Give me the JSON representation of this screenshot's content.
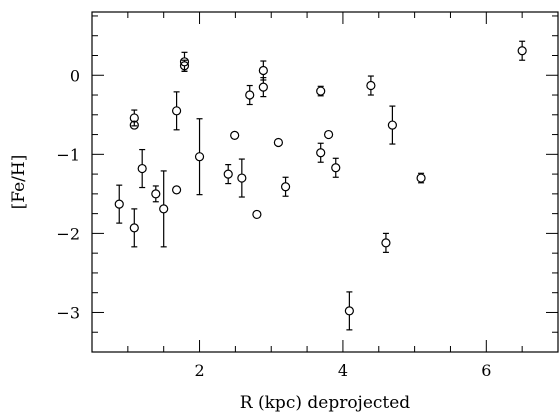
{
  "chart_data": {
    "type": "scatter",
    "title": "",
    "xlabel": "R (kpc) deprojected",
    "ylabel": "[Fe/H]",
    "xlim": [
      0.5,
      7.0
    ],
    "ylim": [
      -3.5,
      0.8
    ],
    "xticks": [
      {
        "value": 2,
        "label": "2"
      },
      {
        "value": 4,
        "label": "4"
      },
      {
        "value": 6,
        "label": "6"
      }
    ],
    "yticks": [
      {
        "value": 0,
        "label": "0"
      },
      {
        "value": -1,
        "label": "−1"
      },
      {
        "value": -2,
        "label": "−2"
      },
      {
        "value": -3,
        "label": "−3"
      }
    ],
    "x_minor_step": 0.5,
    "y_minor_step": 0.25,
    "grid": false,
    "marker": "open-circle",
    "error_bars": "vertical",
    "points": [
      {
        "x": 0.88,
        "y": -1.63,
        "err": 0.24
      },
      {
        "x": 1.09,
        "y": -0.54,
        "err": 0.1
      },
      {
        "x": 1.09,
        "y": -0.63,
        "err": 0.04
      },
      {
        "x": 1.09,
        "y": -1.93,
        "err": 0.24
      },
      {
        "x": 1.2,
        "y": -1.18,
        "err": 0.24
      },
      {
        "x": 1.39,
        "y": -1.5,
        "err": 0.1
      },
      {
        "x": 1.5,
        "y": -1.69,
        "err": 0.48
      },
      {
        "x": 1.68,
        "y": -0.45,
        "err": 0.24
      },
      {
        "x": 1.68,
        "y": -1.45,
        "err": 0.03
      },
      {
        "x": 1.79,
        "y": 0.17,
        "err": 0.12
      },
      {
        "x": 1.79,
        "y": 0.12,
        "err": 0.07
      },
      {
        "x": 2.0,
        "y": -1.03,
        "err": 0.48
      },
      {
        "x": 2.4,
        "y": -1.25,
        "err": 0.12
      },
      {
        "x": 2.49,
        "y": -0.76,
        "err": 0.04
      },
      {
        "x": 2.59,
        "y": -1.3,
        "err": 0.24
      },
      {
        "x": 2.7,
        "y": -0.25,
        "err": 0.12
      },
      {
        "x": 2.8,
        "y": -1.76,
        "err": 0.03
      },
      {
        "x": 2.89,
        "y": 0.06,
        "err": 0.12
      },
      {
        "x": 2.89,
        "y": -0.15,
        "err": 0.12
      },
      {
        "x": 3.1,
        "y": -0.85,
        "err": 0.03
      },
      {
        "x": 3.2,
        "y": -1.41,
        "err": 0.12
      },
      {
        "x": 3.69,
        "y": -0.2,
        "err": 0.06
      },
      {
        "x": 3.69,
        "y": -0.98,
        "err": 0.12
      },
      {
        "x": 3.8,
        "y": -0.75,
        "err": 0.03
      },
      {
        "x": 3.9,
        "y": -1.17,
        "err": 0.12
      },
      {
        "x": 4.09,
        "y": -2.98,
        "err": 0.24
      },
      {
        "x": 4.39,
        "y": -0.13,
        "err": 0.12
      },
      {
        "x": 4.6,
        "y": -2.12,
        "err": 0.12
      },
      {
        "x": 4.69,
        "y": -0.63,
        "err": 0.24
      },
      {
        "x": 5.09,
        "y": -1.3,
        "err": 0.06
      },
      {
        "x": 6.5,
        "y": 0.31,
        "err": 0.12
      }
    ]
  }
}
